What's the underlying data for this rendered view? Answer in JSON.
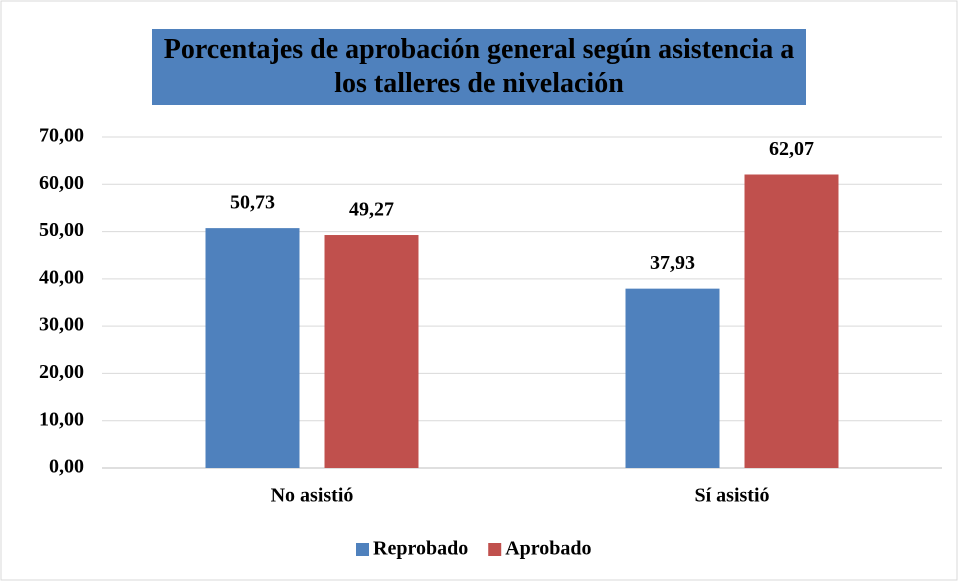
{
  "chart_data": {
    "type": "bar",
    "title": "Porcentajes de aprobación general según asistencia a los talleres de nivelación",
    "categories": [
      "No asistió",
      "Sí asistió"
    ],
    "series": [
      {
        "name": "Reprobado",
        "color": "#4f81bd",
        "values": [
          50.73,
          37.93
        ],
        "value_labels": [
          "50,73",
          "37,93"
        ]
      },
      {
        "name": "Aprobado",
        "color": "#c0504d",
        "values": [
          49.27,
          62.07
        ],
        "value_labels": [
          "49,27",
          "62,07"
        ]
      }
    ],
    "ylim": [
      0,
      70
    ],
    "yticks": [
      {
        "value": 0,
        "label": "0,00"
      },
      {
        "value": 10,
        "label": "10,00"
      },
      {
        "value": 20,
        "label": "20,00"
      },
      {
        "value": 30,
        "label": "30,00"
      },
      {
        "value": 40,
        "label": "40,00"
      },
      {
        "value": 50,
        "label": "50,00"
      },
      {
        "value": 60,
        "label": "60,00"
      },
      {
        "value": 70,
        "label": "70,00"
      }
    ],
    "grid": true,
    "legend": "bottom"
  }
}
